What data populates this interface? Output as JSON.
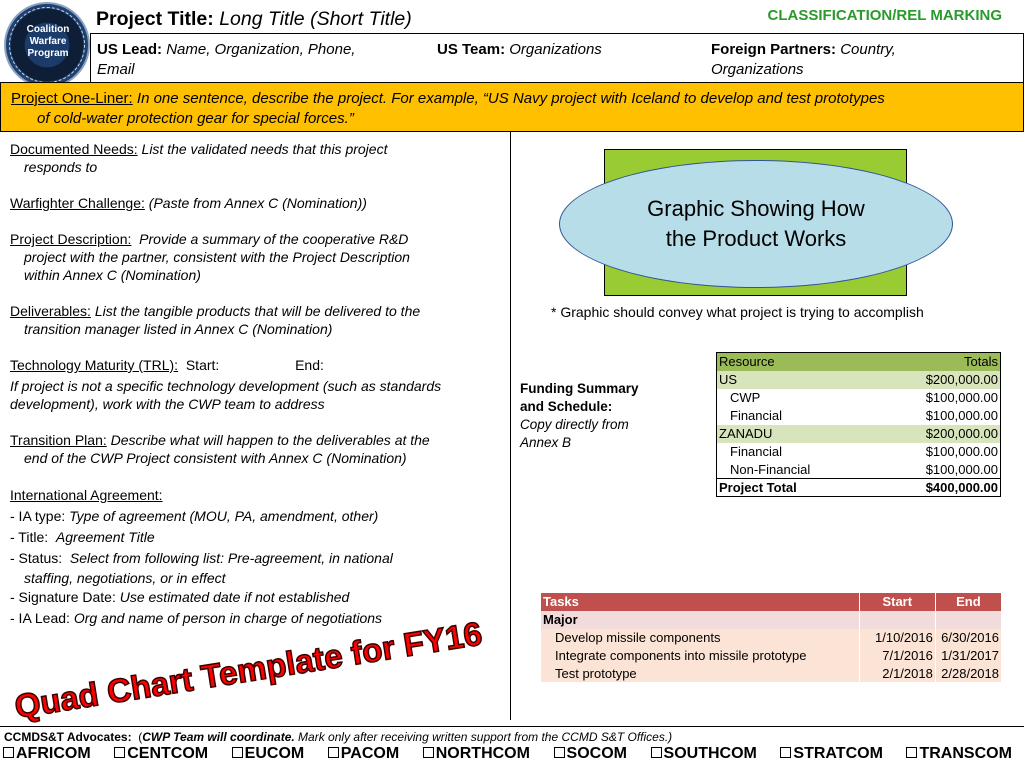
{
  "logo": {
    "text": "Coalition Warfare Program",
    "icon": "cwp-seal-icon"
  },
  "header": {
    "title_label": "Project Title:",
    "title_value": "Long Title (Short Title)",
    "classification": "CLASSIFICATION/REL MARKING",
    "classification_color": "#2a9a2a"
  },
  "leads": {
    "us_lead_label": "US Lead:",
    "us_lead_value": "Name, Organization, Phone,",
    "us_lead_value2": "Email",
    "us_team_label": "US Team:",
    "us_team_value": "Organizations",
    "foreign_label": "Foreign Partners:",
    "foreign_value": "Country,",
    "foreign_value2": "Organizations"
  },
  "one_liner": {
    "label": "Project One-Liner:",
    "text": "In one sentence, describe the project. For example, “US Navy project with Iceland to develop and test prototypes",
    "text2": "of cold-water protection gear for special forces.”",
    "background": "#ffc000"
  },
  "left": {
    "needs_label": "Documented Needs:",
    "needs_text": "List the validated needs that this project",
    "needs_text2": "responds to",
    "challenge_label": "Warfighter Challenge:",
    "challenge_text": "(Paste from Annex C (Nomination))",
    "description_label": "Project Description:",
    "description_text": "Provide a summary of the cooperative R&D",
    "description_text2": "project with the partner, consistent with the Project Description",
    "description_text3": "within Annex C (Nomination)",
    "deliverables_label": "Deliverables:",
    "deliverables_text": "List the tangible products that will be delivered to the",
    "deliverables_text2": "transition manager listed in Annex C (Nomination)",
    "trl_label": "Technology Maturity (TRL):",
    "trl_start": "Start:",
    "trl_end": "End:",
    "trl_note": "If project is not a specific technology development (such as standards",
    "trl_note2": "development), work with the CWP team to address",
    "transition_label": "Transition Plan:",
    "transition_text": "Describe what will happen to the deliverables at the",
    "transition_text2": "end of the CWP Project consistent with Annex C (Nomination)",
    "ia_label": "International Agreement:",
    "ia_type_label": "-  IA type:",
    "ia_type_text": "Type of agreement (MOU, PA, amendment, other)",
    "ia_title_label": "-  Title:",
    "ia_title_text": "Agreement Title",
    "ia_status_label": "-  Status:",
    "ia_status_text": "Select from following list: Pre-agreement, in national",
    "ia_status_text2": "staffing, negotiations, or in effect",
    "ia_sig_label": "-  Signature Date:",
    "ia_sig_text": "Use estimated date if not established",
    "ia_lead_label": "-  IA Lead:",
    "ia_lead_text": "Org and name of person in charge of negotiations"
  },
  "graphic": {
    "text": "Graphic Showing How the Product Works",
    "note": "* Graphic should convey what project is trying to accomplish",
    "rect_color": "#99cc33",
    "ellipse_color": "#b7dde8"
  },
  "funding": {
    "label_bold": "Funding Summary and Schedule:",
    "label_italic": "Copy directly from Annex B",
    "header": [
      "Resource",
      "Totals"
    ],
    "rows": [
      {
        "name": "US",
        "value": "$200,000.00",
        "kind": "grp"
      },
      {
        "name": "CWP",
        "value": "$100,000.00",
        "kind": "sub"
      },
      {
        "name": "Financial",
        "value": "$100,000.00",
        "kind": "sub"
      },
      {
        "name": "ZANADU",
        "value": "$200,000.00",
        "kind": "grp"
      },
      {
        "name": "Financial",
        "value": "$100,000.00",
        "kind": "sub"
      },
      {
        "name": "Non-Financial",
        "value": "$100,000.00",
        "kind": "sub"
      }
    ],
    "total_label": "Project Total",
    "total_value": "$400,000.00"
  },
  "tasks": {
    "header": [
      "Tasks",
      "Start",
      "End"
    ],
    "group": "Major",
    "rows": [
      [
        "Develop missile components",
        "1/10/2016",
        "6/30/2016"
      ],
      [
        "Integrate components into missile prototype",
        "7/1/2016",
        "1/31/2017"
      ],
      [
        "Test prototype",
        "2/1/2018",
        "2/28/2018"
      ]
    ]
  },
  "watermark": "Quad Chart Template for FY16",
  "footer": {
    "advocates_label": "CCMDS&T Advocates:",
    "advocates_open": "(",
    "advocates_bold": "CWP Team will  coordinate.",
    "advocates_text": " Mark only after receiving written support from the CCMD S&T Offices.)",
    "commands": [
      "AFRICOM",
      "CENTCOM",
      "EUCOM",
      "PACOM",
      "NORTHCOM",
      "SOCOM",
      "SOUTHCOM",
      "STRATCOM",
      "TRANSCOM"
    ]
  }
}
